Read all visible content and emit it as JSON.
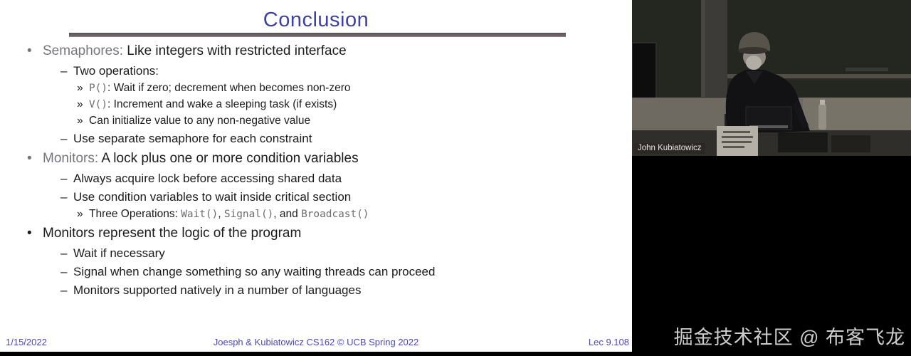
{
  "slide": {
    "title": "Conclusion",
    "lines": [
      {
        "level": 1,
        "marker": "•",
        "marker_style": "gray",
        "segments": [
          {
            "t": "Semaphores:",
            "s": "gray"
          },
          {
            "t": " Like integers with restricted interface",
            "s": "normal"
          }
        ]
      },
      {
        "level": 2,
        "marker": "–",
        "marker_style": "normal",
        "segments": [
          {
            "t": "Two operations:",
            "s": "normal"
          }
        ]
      },
      {
        "level": 3,
        "marker": "»",
        "marker_style": "normal",
        "segments": [
          {
            "t": "P()",
            "s": "code"
          },
          {
            "t": ": Wait if zero; decrement when becomes non-zero",
            "s": "normal"
          }
        ]
      },
      {
        "level": 3,
        "marker": "»",
        "marker_style": "normal",
        "segments": [
          {
            "t": "V()",
            "s": "code"
          },
          {
            "t": ": Increment and wake a sleeping task (if exists)",
            "s": "normal"
          }
        ]
      },
      {
        "level": 3,
        "marker": "»",
        "marker_style": "normal",
        "segments": [
          {
            "t": "Can initialize value to any non-negative value",
            "s": "normal"
          }
        ]
      },
      {
        "level": 2,
        "marker": "–",
        "marker_style": "normal",
        "segments": [
          {
            "t": "Use separate semaphore for each constraint",
            "s": "normal"
          }
        ]
      },
      {
        "level": 1,
        "marker": "•",
        "marker_style": "gray",
        "segments": [
          {
            "t": "Monitors:",
            "s": "gray"
          },
          {
            "t": " A lock plus one or more condition variables",
            "s": "normal"
          }
        ]
      },
      {
        "level": 2,
        "marker": "–",
        "marker_style": "normal",
        "segments": [
          {
            "t": "Always acquire lock before accessing shared data",
            "s": "normal"
          }
        ]
      },
      {
        "level": 2,
        "marker": "–",
        "marker_style": "normal",
        "segments": [
          {
            "t": "Use condition variables to wait inside critical section",
            "s": "normal"
          }
        ]
      },
      {
        "level": 3,
        "marker": "»",
        "marker_style": "normal",
        "segments": [
          {
            "t": "Three Operations: ",
            "s": "normal"
          },
          {
            "t": "Wait()",
            "s": "code"
          },
          {
            "t": ", ",
            "s": "normal"
          },
          {
            "t": "Signal()",
            "s": "code"
          },
          {
            "t": ", and ",
            "s": "normal"
          },
          {
            "t": "Broadcast()",
            "s": "code"
          }
        ]
      },
      {
        "level": 1,
        "marker": "•",
        "marker_style": "normal",
        "segments": [
          {
            "t": "Monitors represent the logic of the program",
            "s": "normal"
          }
        ]
      },
      {
        "level": 2,
        "marker": "–",
        "marker_style": "normal",
        "segments": [
          {
            "t": "Wait if necessary",
            "s": "normal"
          }
        ]
      },
      {
        "level": 2,
        "marker": "–",
        "marker_style": "normal",
        "segments": [
          {
            "t": "Signal when change something so any waiting threads can proceed",
            "s": "normal"
          }
        ]
      },
      {
        "level": 2,
        "marker": "–",
        "marker_style": "normal",
        "segments": [
          {
            "t": "Monitors supported natively in a number of languages",
            "s": "normal"
          }
        ]
      }
    ],
    "footer": {
      "date": "1/15/2022",
      "center": "Joesph & Kubiatowicz CS162 © UCB Spring 2022",
      "lecture": "Lec 9.108"
    }
  },
  "video": {
    "speaker_label": "John Kubiatowicz"
  },
  "watermark": {
    "text": "掘金技术社区 @ 布客飞龙"
  },
  "colors": {
    "title_blue": "#3d41a6",
    "footer_blue": "#4a49ae",
    "heading_gray": "#75757d",
    "code_gray": "#6d6d71",
    "body_text": "#1b1b1b",
    "rule": "#6b6065",
    "watermark_text": "#cccccc"
  }
}
